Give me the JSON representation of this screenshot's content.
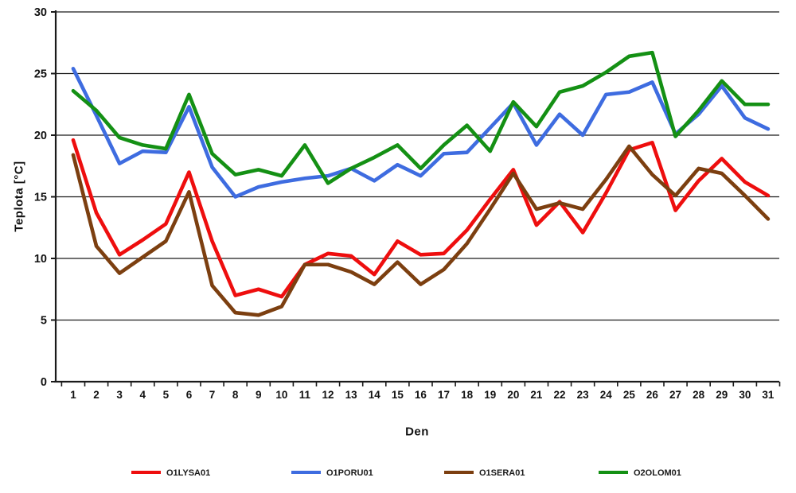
{
  "chart_data": {
    "type": "line",
    "title": "",
    "xlabel": "Den",
    "ylabel": "Teplota [°C]",
    "x": [
      1,
      2,
      3,
      4,
      5,
      6,
      7,
      8,
      9,
      10,
      11,
      12,
      13,
      14,
      15,
      16,
      17,
      18,
      19,
      20,
      21,
      22,
      23,
      24,
      25,
      26,
      27,
      28,
      29,
      30,
      31
    ],
    "ylim": [
      0,
      30
    ],
    "ytick_step": 5,
    "grid": true,
    "legend_position": "bottom",
    "axis_color": "#1a1a1a",
    "background_color": "#ffffff",
    "series": [
      {
        "name": "O1LYSA01",
        "color": "#ee0e0e",
        "values": [
          19.6,
          13.7,
          10.3,
          11.5,
          12.8,
          17.0,
          11.4,
          7.0,
          7.5,
          6.9,
          9.5,
          10.4,
          10.2,
          8.7,
          11.4,
          10.3,
          10.4,
          12.3,
          14.8,
          17.2,
          12.7,
          14.6,
          12.1,
          15.3,
          18.8,
          19.4,
          13.9,
          16.3,
          18.1,
          16.2,
          15.1
        ]
      },
      {
        "name": "O1PORU01",
        "color": "#3e6ce0",
        "values": [
          25.4,
          21.6,
          17.7,
          18.7,
          18.6,
          22.3,
          17.4,
          15.0,
          15.8,
          16.2,
          16.5,
          16.7,
          17.3,
          16.3,
          17.6,
          16.7,
          18.5,
          18.6,
          20.6,
          22.6,
          19.2,
          21.7,
          20.0,
          23.3,
          23.5,
          24.3,
          20.1,
          21.7,
          24.0,
          21.4,
          20.5
        ]
      },
      {
        "name": "O1SERA01",
        "color": "#7c3f10",
        "values": [
          18.4,
          11.0,
          8.8,
          10.1,
          11.4,
          15.4,
          7.8,
          5.6,
          5.4,
          6.1,
          9.5,
          9.5,
          8.9,
          7.9,
          9.7,
          7.9,
          9.1,
          11.2,
          14.0,
          16.9,
          14.0,
          14.5,
          14.0,
          16.4,
          19.1,
          16.8,
          15.1,
          17.3,
          16.9,
          15.1,
          13.2
        ]
      },
      {
        "name": "O2OLOM01",
        "color": "#149014",
        "values": [
          23.6,
          22.0,
          19.8,
          19.2,
          18.9,
          23.3,
          18.5,
          16.8,
          17.2,
          16.7,
          19.2,
          16.1,
          17.3,
          18.2,
          19.2,
          17.3,
          19.2,
          20.8,
          18.7,
          22.7,
          20.7,
          23.5,
          24.0,
          25.1,
          26.4,
          26.7,
          19.9,
          22.0,
          24.4,
          22.5,
          22.5
        ]
      }
    ]
  }
}
